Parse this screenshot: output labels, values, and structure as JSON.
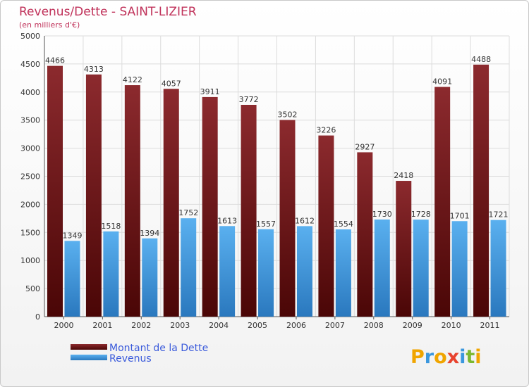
{
  "chart_data": {
    "type": "bar",
    "title": "Revenus/Dette - SAINT-LIZIER",
    "subtitle": "(en milliers d'€)",
    "categories": [
      "2000",
      "2001",
      "2002",
      "2003",
      "2004",
      "2005",
      "2006",
      "2007",
      "2008",
      "2009",
      "2010",
      "2011"
    ],
    "series": [
      {
        "name": "Montant de la Dette",
        "color": "#7a1c20",
        "values": [
          4466,
          4313,
          4122,
          4057,
          3911,
          3772,
          3502,
          3226,
          2927,
          2418,
          4091,
          4488
        ]
      },
      {
        "name": "Revenus",
        "color": "#3a97de",
        "values": [
          1349,
          1518,
          1394,
          1752,
          1613,
          1557,
          1612,
          1554,
          1730,
          1728,
          1701,
          1721
        ]
      }
    ],
    "ylim": [
      0,
      5000
    ],
    "yticks": [
      0,
      500,
      1000,
      1500,
      2000,
      2500,
      3000,
      3500,
      4000,
      4500,
      5000
    ],
    "grid": true,
    "legend_position": "bottom-left"
  },
  "logo": {
    "letters": [
      "P",
      "r",
      "o",
      "x",
      "i",
      "t",
      "i"
    ],
    "colors": [
      "#f0a500",
      "#3a97de",
      "#f0a500",
      "#e8432e",
      "#3a97de",
      "#7cb82f",
      "#f0a500"
    ]
  }
}
